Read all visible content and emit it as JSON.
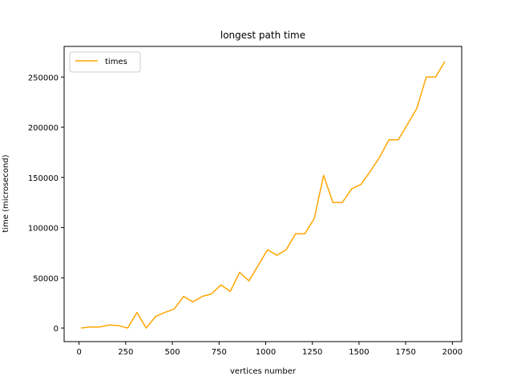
{
  "chart_data": {
    "type": "line",
    "title": "longest path time",
    "xlabel": "vertices number",
    "ylabel": "time (microsecond)",
    "xlim": [
      -80,
      2050
    ],
    "ylim": [
      -13500,
      280500
    ],
    "xticks": [
      0,
      250,
      500,
      750,
      1000,
      1250,
      1500,
      1750,
      2000
    ],
    "yticks": [
      0,
      50000,
      100000,
      150000,
      200000,
      250000
    ],
    "xtick_labels": [
      "0",
      "250",
      "500",
      "750",
      "1000",
      "1250",
      "1500",
      "1750",
      "2000"
    ],
    "ytick_labels": [
      "0",
      "50000",
      "100000",
      "150000",
      "200000",
      "250000"
    ],
    "grid": false,
    "legend": {
      "position": "top-left"
    },
    "colors": {
      "times": "#ffa500"
    },
    "series": [
      {
        "name": "times",
        "x": [
          10,
          60,
          110,
          160,
          210,
          260,
          310,
          360,
          410,
          460,
          510,
          560,
          610,
          660,
          710,
          760,
          810,
          860,
          910,
          960,
          1010,
          1060,
          1110,
          1160,
          1210,
          1260,
          1310,
          1360,
          1410,
          1460,
          1510,
          1560,
          1610,
          1660,
          1710,
          1760,
          1810,
          1860,
          1910,
          1960
        ],
        "y": [
          0,
          1000,
          1000,
          3000,
          2500,
          0,
          15500,
          0,
          11500,
          15500,
          19000,
          31500,
          26000,
          31500,
          34000,
          43000,
          36500,
          55500,
          47000,
          62500,
          78000,
          72500,
          78000,
          94000,
          94000,
          109000,
          152000,
          125000,
          125000,
          138500,
          143000,
          156000,
          170000,
          187500,
          187500,
          203000,
          219000,
          250000,
          250000,
          265500
        ]
      }
    ]
  }
}
